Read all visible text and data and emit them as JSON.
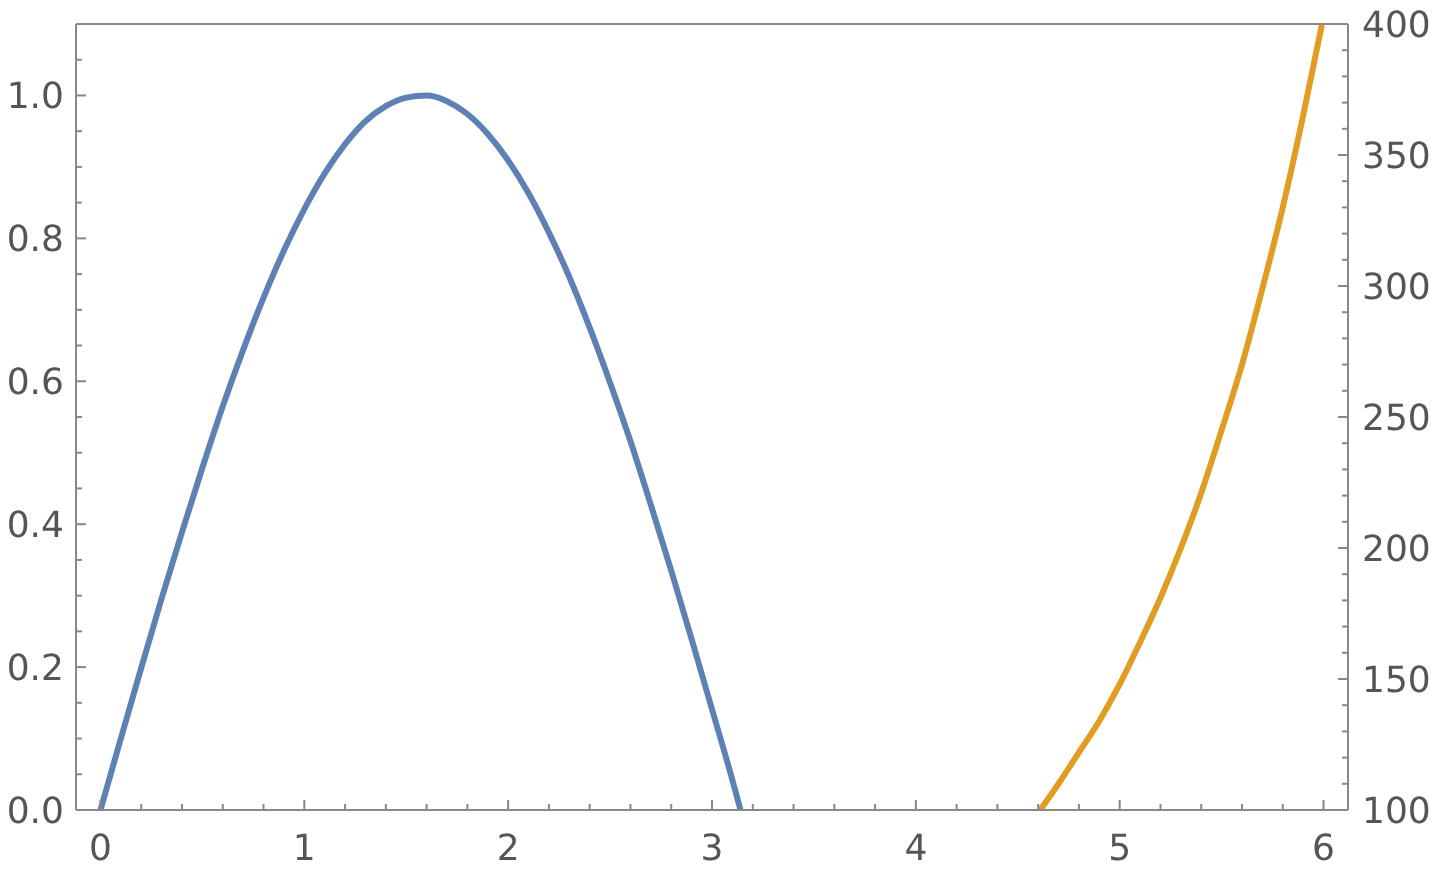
{
  "chart_data": {
    "type": "line",
    "xlim": [
      -0.12,
      6.12
    ],
    "xticks": [
      0,
      {
        "value": 0.2,
        "label": null
      },
      {
        "value": 0.4,
        "label": null
      },
      {
        "value": 0.6,
        "label": null
      },
      {
        "value": 0.8,
        "label": null
      },
      1,
      {
        "value": 1.2,
        "label": null
      },
      {
        "value": 1.4,
        "label": null
      },
      {
        "value": 1.6,
        "label": null
      },
      {
        "value": 1.8,
        "label": null
      },
      2,
      {
        "value": 2.2,
        "label": null
      },
      {
        "value": 2.4,
        "label": null
      },
      {
        "value": 2.6,
        "label": null
      },
      {
        "value": 2.8,
        "label": null
      },
      3,
      {
        "value": 3.2,
        "label": null
      },
      {
        "value": 3.4,
        "label": null
      },
      {
        "value": 3.6,
        "label": null
      },
      {
        "value": 3.8,
        "label": null
      },
      4,
      {
        "value": 4.2,
        "label": null
      },
      {
        "value": 4.4,
        "label": null
      },
      {
        "value": 4.6,
        "label": null
      },
      {
        "value": 4.8,
        "label": null
      },
      5,
      {
        "value": 5.2,
        "label": null
      },
      {
        "value": 5.4,
        "label": null
      },
      {
        "value": 5.6,
        "label": null
      },
      {
        "value": 5.8,
        "label": null
      },
      6
    ],
    "ylim": [
      0,
      1.1
    ],
    "yticks": [
      {
        "value": 0,
        "label": "0.0"
      },
      {
        "value": 0.05,
        "label": null
      },
      {
        "value": 0.1,
        "label": null
      },
      {
        "value": 0.15,
        "label": null
      },
      {
        "value": 0.2,
        "label": "0.2"
      },
      {
        "value": 0.25,
        "label": null
      },
      {
        "value": 0.3,
        "label": null
      },
      {
        "value": 0.35,
        "label": null
      },
      {
        "value": 0.4,
        "label": "0.4"
      },
      {
        "value": 0.45,
        "label": null
      },
      {
        "value": 0.5,
        "label": null
      },
      {
        "value": 0.55,
        "label": null
      },
      {
        "value": 0.6,
        "label": "0.6"
      },
      {
        "value": 0.65,
        "label": null
      },
      {
        "value": 0.7,
        "label": null
      },
      {
        "value": 0.75,
        "label": null
      },
      {
        "value": 0.8,
        "label": "0.8"
      },
      {
        "value": 0.85,
        "label": null
      },
      {
        "value": 0.9,
        "label": null
      },
      {
        "value": 0.95,
        "label": null
      },
      {
        "value": 1,
        "label": "1.0"
      },
      {
        "value": 1.05,
        "label": null
      }
    ],
    "y2lim": [
      100,
      400
    ],
    "y2ticks": [
      100,
      {
        "value": 110,
        "label": null
      },
      {
        "value": 120,
        "label": null
      },
      {
        "value": 130,
        "label": null
      },
      {
        "value": 140,
        "label": null
      },
      150,
      {
        "value": 160,
        "label": null
      },
      {
        "value": 170,
        "label": null
      },
      {
        "value": 180,
        "label": null
      },
      {
        "value": 190,
        "label": null
      },
      200,
      {
        "value": 210,
        "label": null
      },
      {
        "value": 220,
        "label": null
      },
      {
        "value": 230,
        "label": null
      },
      {
        "value": 240,
        "label": null
      },
      250,
      {
        "value": 260,
        "label": null
      },
      {
        "value": 270,
        "label": null
      },
      {
        "value": 280,
        "label": null
      },
      {
        "value": 290,
        "label": null
      },
      300,
      {
        "value": 310,
        "label": null
      },
      {
        "value": 320,
        "label": null
      },
      {
        "value": 330,
        "label": null
      },
      {
        "value": 340,
        "label": null
      },
      350,
      {
        "value": 360,
        "label": null
      },
      {
        "value": 370,
        "label": null
      },
      {
        "value": 380,
        "label": null
      },
      {
        "value": 390,
        "label": null
      },
      400
    ],
    "series": [
      {
        "color": "#5e81b5",
        "x": [
          0,
          0.1,
          0.2,
          0.3,
          0.4,
          0.5,
          0.6,
          0.7,
          0.8,
          0.9,
          1.0,
          1.1,
          1.2,
          1.3,
          1.4,
          1.5,
          1.6,
          1.7,
          1.8,
          1.9,
          2.0,
          2.1,
          2.2,
          2.3,
          2.4,
          2.5,
          2.6,
          2.7,
          2.8,
          2.9,
          3.0,
          3.1,
          3.14
        ],
        "values": [
          0,
          0.1,
          0.199,
          0.296,
          0.389,
          0.479,
          0.565,
          0.644,
          0.717,
          0.783,
          0.841,
          0.891,
          0.932,
          0.964,
          0.985,
          0.997,
          1.0,
          0.992,
          0.974,
          0.946,
          0.909,
          0.863,
          0.808,
          0.746,
          0.675,
          0.598,
          0.516,
          0.427,
          0.335,
          0.239,
          0.141,
          0.042,
          0
        ]
      },
      {
        "color": "#e19c24",
        "axis": "y2",
        "x": [
          4.61,
          4.7,
          4.8,
          4.9,
          5.0,
          5.1,
          5.2,
          5.3,
          5.4,
          5.5,
          5.6,
          5.7,
          5.8,
          5.9,
          5.99
        ],
        "values": [
          100,
          110,
          122,
          134,
          148,
          164,
          181,
          200,
          221,
          245,
          270,
          299,
          330,
          365,
          399
        ]
      }
    ]
  }
}
